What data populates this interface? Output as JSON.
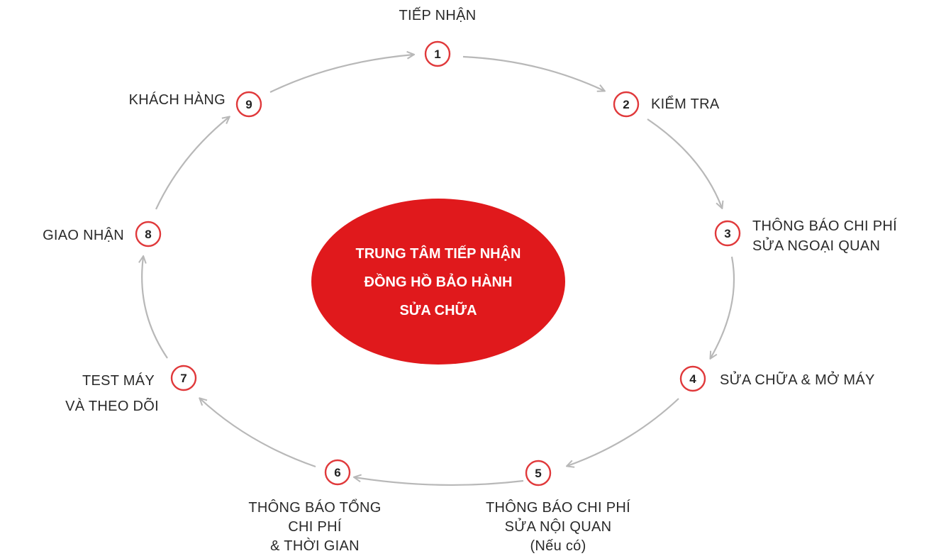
{
  "center": {
    "lines": [
      "TRUNG TÂM TIẾP NHẬN",
      "ĐỒNG HỒ BẢO HÀNH",
      "SỬA CHỮA"
    ],
    "color": "#e0191c"
  },
  "accent_color": "#e0393b",
  "arrow_color": "#b8b8b8",
  "steps": [
    {
      "number": "1",
      "label_lines": [
        "TIẾP NHẬN"
      ]
    },
    {
      "number": "2",
      "label_lines": [
        "KIỂM TRA"
      ]
    },
    {
      "number": "3",
      "label_lines": [
        "THÔNG BÁO CHI PHÍ",
        "SỬA NGOẠI QUAN"
      ]
    },
    {
      "number": "4",
      "label_lines": [
        "SỬA CHỮA & MỞ MÁY"
      ]
    },
    {
      "number": "5",
      "label_lines": [
        "THÔNG BÁO CHI PHÍ",
        "SỬA NỘI QUAN",
        "(Nếu có)"
      ]
    },
    {
      "number": "6",
      "label_lines": [
        "THÔNG BÁO TỔNG",
        "CHI PHÍ",
        "& THỜI GIAN"
      ]
    },
    {
      "number": "7",
      "label_lines": [
        "TEST MÁY",
        "VÀ THEO DÕI"
      ]
    },
    {
      "number": "8",
      "label_lines": [
        "GIAO NHẬN"
      ]
    },
    {
      "number": "9",
      "label_lines": [
        "KHÁCH HÀNG"
      ]
    }
  ]
}
